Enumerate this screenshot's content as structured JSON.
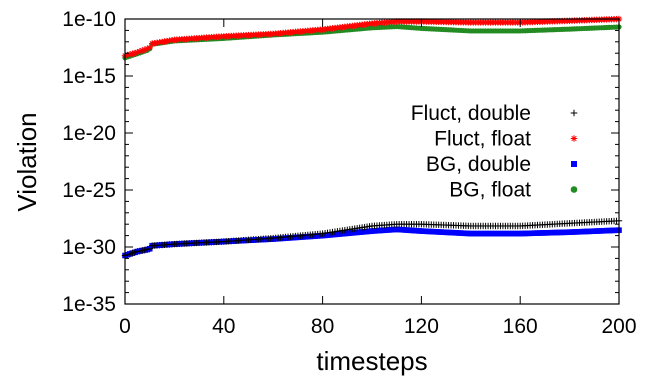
{
  "chart_data": {
    "type": "scatter",
    "xlabel": "timesteps",
    "ylabel": "Violation",
    "xlim": [
      0,
      200
    ],
    "ylim": [
      1e-35,
      1e-10
    ],
    "log_y": true,
    "grid": false,
    "legend_position": "right",
    "x_ticks": [
      0,
      40,
      80,
      120,
      160,
      200
    ],
    "x_tick_labels": [
      "0",
      "40",
      "80",
      "120",
      "160",
      "200"
    ],
    "y_ticks": [
      1e-35,
      1e-30,
      1e-25,
      1e-20,
      1e-15,
      1e-10
    ],
    "y_tick_labels": [
      "1e-35",
      "1e-30",
      "1e-25",
      "1e-20",
      "1e-15",
      "1e-10"
    ],
    "series": [
      {
        "name": "Fluct, double",
        "color": "#000000",
        "marker": "plus",
        "x": [
          0,
          5,
          9,
          10,
          11,
          20,
          40,
          60,
          80,
          100,
          110,
          120,
          140,
          160,
          180,
          200
        ],
        "y": [
          1.8e-31,
          4e-31,
          6e-31,
          7e-31,
          1.3e-30,
          1.8e-30,
          3e-30,
          6e-30,
          1.5e-29,
          7e-29,
          1e-28,
          1e-28,
          7e-29,
          7e-29,
          1.2e-28,
          2e-28
        ]
      },
      {
        "name": "Fluct, float",
        "color": "#ff0000",
        "marker": "asterisk",
        "x": [
          0,
          5,
          9,
          10,
          11,
          20,
          40,
          60,
          80,
          100,
          110,
          120,
          140,
          160,
          180,
          200
        ],
        "y": [
          6e-14,
          1.2e-13,
          2.5e-13,
          3e-13,
          7e-13,
          1.5e-12,
          3e-12,
          5e-12,
          1.2e-11,
          4e-11,
          6e-11,
          6e-11,
          5e-11,
          5e-11,
          7e-11,
          1e-10
        ]
      },
      {
        "name": "BG, double",
        "color": "#0000ff",
        "marker": "square",
        "x": [
          0,
          5,
          9,
          10,
          11,
          20,
          40,
          60,
          80,
          100,
          110,
          120,
          140,
          160,
          180,
          200
        ],
        "y": [
          1.8e-31,
          4e-31,
          6e-31,
          7e-31,
          1.3e-30,
          1.8e-30,
          3e-30,
          5e-30,
          1e-29,
          2.5e-29,
          3.5e-29,
          2.5e-29,
          1.5e-29,
          1.5e-29,
          2e-29,
          3e-29
        ]
      },
      {
        "name": "BG, float",
        "color": "#228b22",
        "marker": "circle",
        "x": [
          0,
          5,
          9,
          10,
          11,
          20,
          40,
          60,
          80,
          100,
          110,
          120,
          140,
          160,
          180,
          200
        ],
        "y": [
          4e-14,
          9e-14,
          1.8e-13,
          2.5e-13,
          6e-13,
          1.2e-12,
          2e-12,
          4e-12,
          7e-12,
          1.7e-11,
          2.2e-11,
          1.5e-11,
          9e-12,
          9e-12,
          1.3e-11,
          2e-11
        ]
      }
    ]
  }
}
